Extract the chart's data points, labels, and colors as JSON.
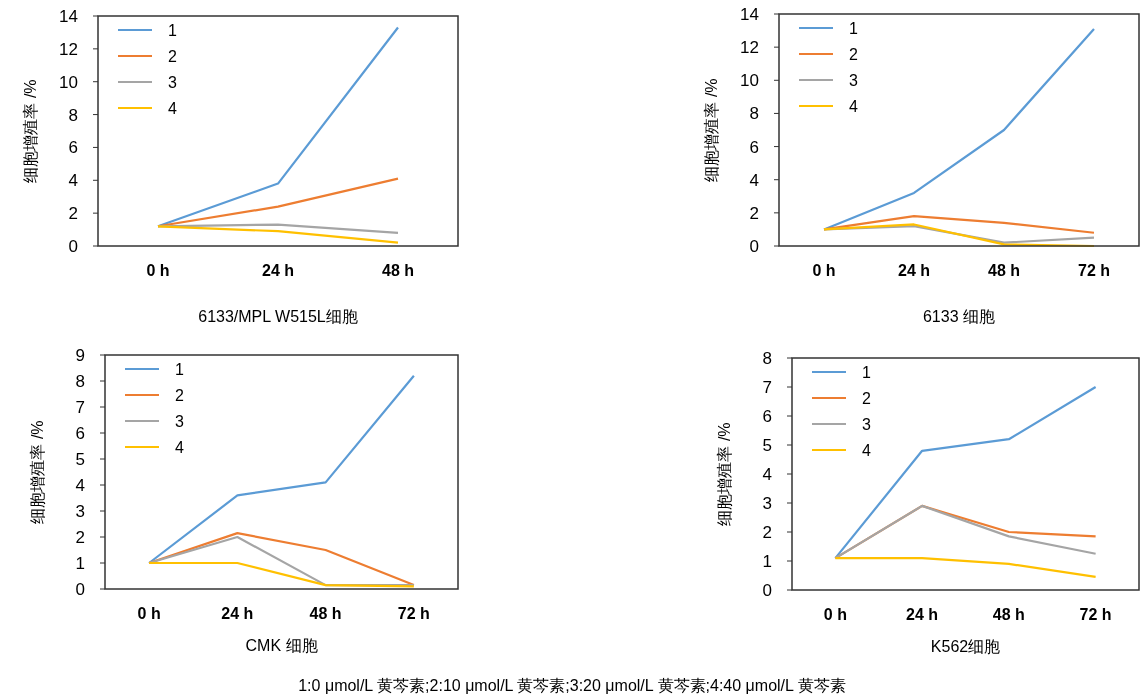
{
  "chart_data": [
    {
      "type": "line",
      "xlabel": "6133/MPL  W515L细胞",
      "ylabel": "细胞增殖率 /%",
      "categories": [
        "0 h",
        "24 h",
        "48 h"
      ],
      "ylim": [
        0,
        14
      ],
      "yticks": [
        0,
        2,
        4,
        6,
        8,
        10,
        12,
        14
      ],
      "grid": false,
      "legend": "top left",
      "marker": "none",
      "series": [
        {
          "name": "1",
          "color": "#5b9bd5",
          "values": [
            1.2,
            3.8,
            13.3
          ]
        },
        {
          "name": "2",
          "color": "#ed7d31",
          "values": [
            1.2,
            2.4,
            4.1
          ]
        },
        {
          "name": "3",
          "color": "#a5a5a5",
          "values": [
            1.2,
            1.3,
            0.8
          ]
        },
        {
          "name": "4",
          "color": "#ffc000",
          "values": [
            1.2,
            0.9,
            0.2
          ]
        }
      ]
    },
    {
      "type": "line",
      "xlabel": "6133 细胞",
      "ylabel": "细胞增殖率 /%",
      "categories": [
        "0 h",
        "24 h",
        "48 h",
        "72 h"
      ],
      "ylim": [
        0,
        14
      ],
      "yticks": [
        0,
        2,
        4,
        6,
        8,
        10,
        12,
        14
      ],
      "grid": false,
      "legend": "top left",
      "marker": "none",
      "series": [
        {
          "name": "1",
          "color": "#5b9bd5",
          "values": [
            1.0,
            3.2,
            7.0,
            13.1
          ]
        },
        {
          "name": "2",
          "color": "#ed7d31",
          "values": [
            1.0,
            1.8,
            1.4,
            0.8
          ]
        },
        {
          "name": "3",
          "color": "#a5a5a5",
          "values": [
            1.0,
            1.2,
            0.2,
            0.5
          ]
        },
        {
          "name": "4",
          "color": "#ffc000",
          "values": [
            1.0,
            1.3,
            0.1,
            0.0
          ]
        }
      ]
    },
    {
      "type": "line",
      "xlabel": "CMK 细胞",
      "ylabel": "细胞增殖率 /%",
      "categories": [
        "0 h",
        "24 h",
        "48 h",
        "72 h"
      ],
      "ylim": [
        0,
        9
      ],
      "yticks": [
        0,
        1,
        2,
        3,
        4,
        5,
        6,
        7,
        8,
        9
      ],
      "grid": false,
      "legend": "top left",
      "marker": "none",
      "series": [
        {
          "name": "1",
          "color": "#5b9bd5",
          "values": [
            1.0,
            3.6,
            4.1,
            8.2
          ]
        },
        {
          "name": "2",
          "color": "#ed7d31",
          "values": [
            1.0,
            2.15,
            1.5,
            0.15
          ]
        },
        {
          "name": "3",
          "color": "#a5a5a5",
          "values": [
            1.0,
            2.0,
            0.15,
            0.15
          ]
        },
        {
          "name": "4",
          "color": "#ffc000",
          "values": [
            1.0,
            1.0,
            0.15,
            0.1
          ]
        }
      ]
    },
    {
      "type": "line",
      "xlabel": "K562细胞",
      "ylabel": "细胞增殖率 /%",
      "categories": [
        "0 h",
        "24 h",
        "48 h",
        "72 h"
      ],
      "ylim": [
        0,
        8
      ],
      "yticks": [
        0,
        1,
        2,
        3,
        4,
        5,
        6,
        7,
        8
      ],
      "grid": false,
      "legend": "top left",
      "marker": "none",
      "annotations": [
        "1:0 μmol/L 黄芩素;2:10 μmol/L 黄芩素;3:20 μmol/L 黄芩素;4:40 μmol/L 黄芩素"
      ],
      "series": [
        {
          "name": "1",
          "color": "#5b9bd5",
          "values": [
            1.1,
            4.8,
            5.2,
            7.0
          ]
        },
        {
          "name": "2",
          "color": "#ed7d31",
          "values": [
            1.1,
            2.9,
            2.0,
            1.85
          ]
        },
        {
          "name": "3",
          "color": "#a5a5a5",
          "values": [
            1.1,
            2.9,
            1.85,
            1.25
          ]
        },
        {
          "name": "4",
          "color": "#ffc000",
          "values": [
            1.1,
            1.1,
            0.9,
            0.45
          ]
        }
      ]
    }
  ]
}
